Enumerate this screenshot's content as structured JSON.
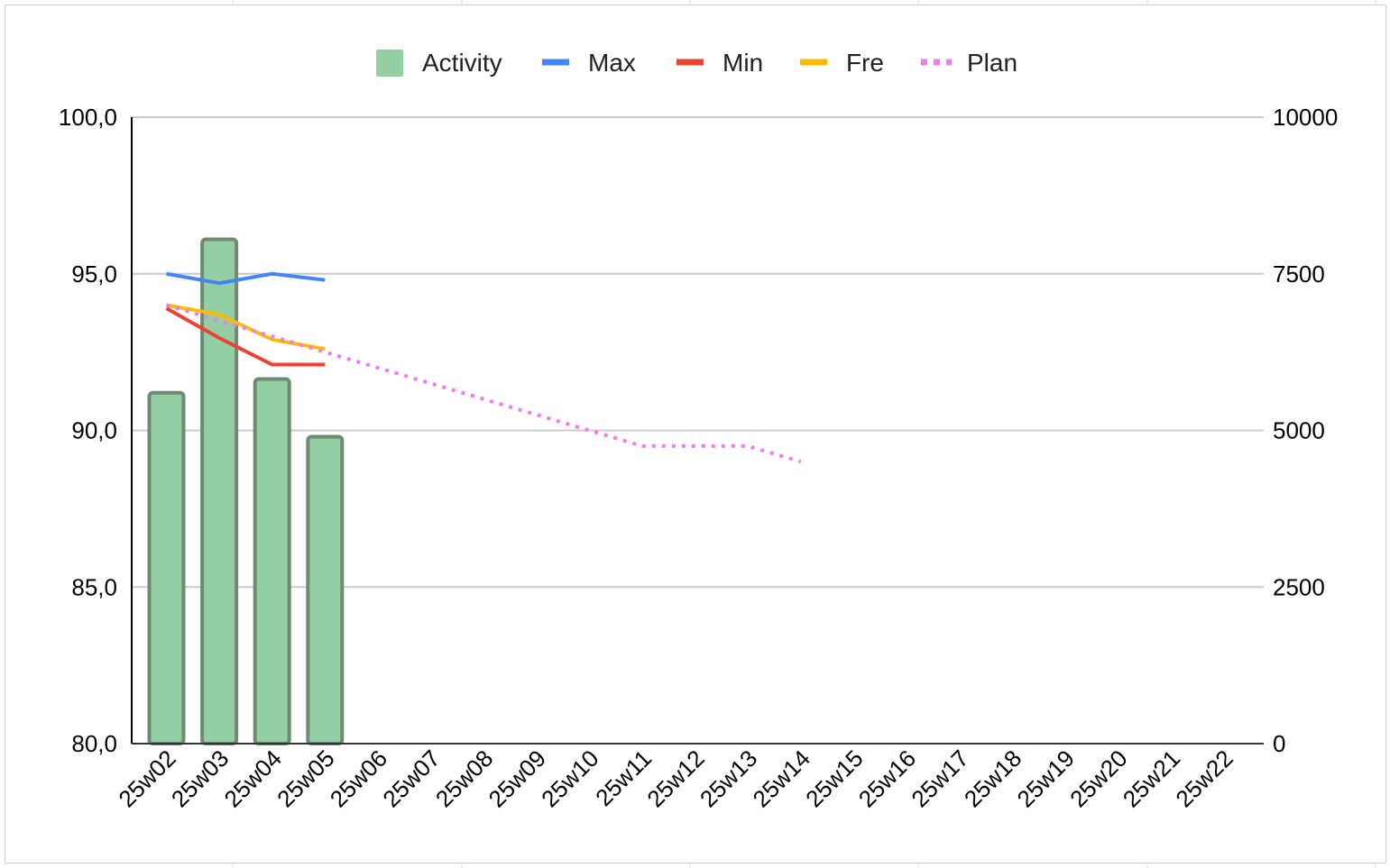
{
  "chart_data": {
    "type": "bar",
    "title": "",
    "xlabel": "",
    "ylabel": "",
    "categories": [
      "25w02",
      "25w03",
      "25w04",
      "25w05",
      "25w06",
      "25w07",
      "25w08",
      "25w09",
      "25w10",
      "25w11",
      "25w12",
      "25w13",
      "25w14",
      "25w15",
      "25w16",
      "25w17",
      "25w18",
      "25w19",
      "25w20",
      "25w21",
      "25w22"
    ],
    "ylim_left": [
      80,
      100
    ],
    "yticks_left": [
      "80,0",
      "85,0",
      "90,0",
      "95,0",
      "100,0"
    ],
    "ylim_right": [
      0,
      10000
    ],
    "yticks_right": [
      "0",
      "2500",
      "5000",
      "7500",
      "10000"
    ],
    "grid": true,
    "legend_position": "top",
    "series": [
      {
        "name": "Activity",
        "kind": "bar",
        "axis": "right",
        "color": "#93cfa3",
        "edge_color": "#6e8a73",
        "values": [
          5600,
          8050,
          5820,
          4900,
          null,
          null,
          null,
          null,
          null,
          null,
          null,
          null,
          null,
          null,
          null,
          null,
          null,
          null,
          null,
          null,
          null
        ]
      },
      {
        "name": "Max",
        "kind": "line",
        "axis": "left",
        "color": "#4285f4",
        "style": "solid",
        "values": [
          95.0,
          94.7,
          95.0,
          94.8,
          null,
          null,
          null,
          null,
          null,
          null,
          null,
          null,
          null,
          null,
          null,
          null,
          null,
          null,
          null,
          null,
          null
        ]
      },
      {
        "name": "Min",
        "kind": "line",
        "axis": "left",
        "color": "#ea4335",
        "style": "solid",
        "values": [
          93.9,
          92.95,
          92.1,
          92.1,
          null,
          null,
          null,
          null,
          null,
          null,
          null,
          null,
          null,
          null,
          null,
          null,
          null,
          null,
          null,
          null,
          null
        ]
      },
      {
        "name": "Fre",
        "kind": "line",
        "axis": "left",
        "color": "#fbbc04",
        "style": "solid",
        "values": [
          94.0,
          93.7,
          92.9,
          92.6,
          null,
          null,
          null,
          null,
          null,
          null,
          null,
          null,
          null,
          null,
          null,
          null,
          null,
          null,
          null,
          null,
          null
        ]
      },
      {
        "name": "Plan",
        "kind": "line",
        "axis": "left",
        "color": "#f07cf0",
        "style": "dotted",
        "values": [
          94.0,
          93.5,
          93.0,
          92.5,
          92.0,
          91.5,
          91.0,
          90.5,
          90.0,
          89.5,
          89.5,
          89.5,
          89.0,
          null,
          null,
          null,
          null,
          null,
          null,
          null,
          null
        ]
      }
    ]
  }
}
